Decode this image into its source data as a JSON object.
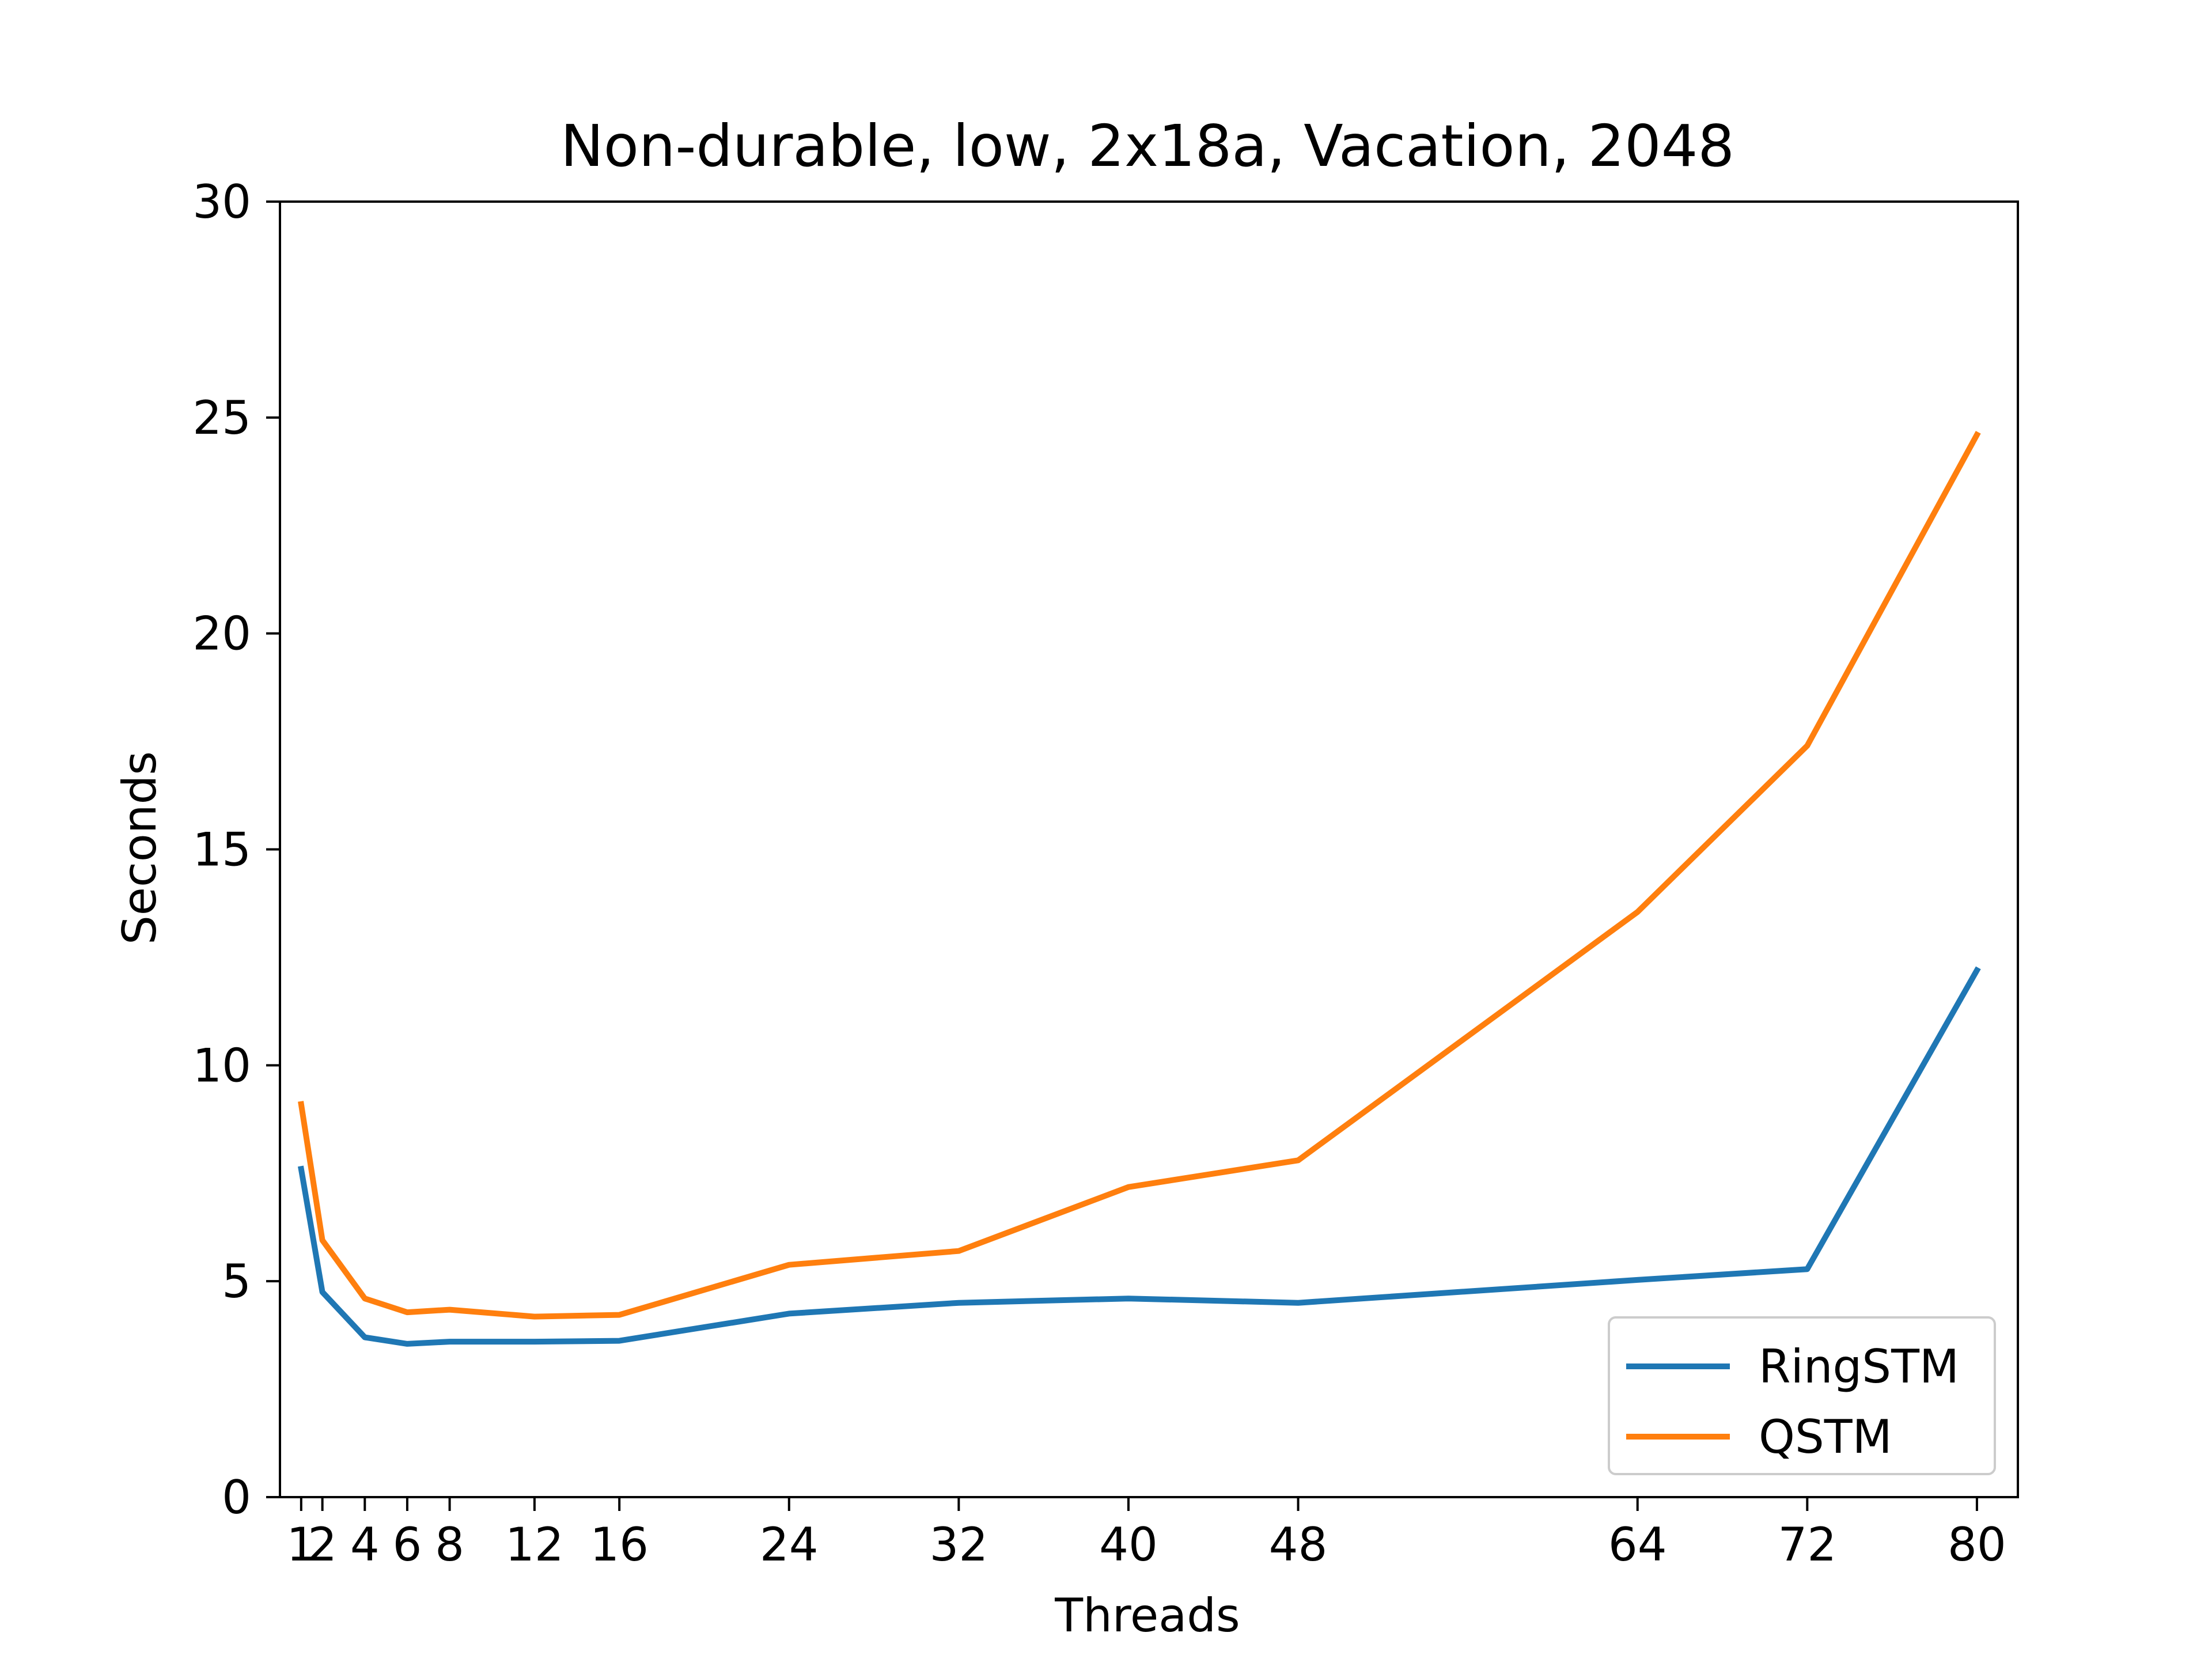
{
  "chart_data": {
    "type": "line",
    "title": "Non-durable, low, 2x18a, Vacation, 2048",
    "xlabel": "Threads",
    "ylabel": "Seconds",
    "xlim": [
      0,
      81.93
    ],
    "ylim": [
      0,
      30
    ],
    "xticks": [
      1,
      2,
      4,
      6,
      8,
      12,
      16,
      24,
      32,
      40,
      48,
      64,
      72,
      80
    ],
    "yticks": [
      0,
      5,
      10,
      15,
      20,
      25,
      30
    ],
    "x": [
      1,
      2,
      4,
      6,
      8,
      12,
      16,
      24,
      32,
      40,
      48,
      64,
      72,
      80
    ],
    "series": [
      {
        "name": "RingSTM",
        "color": "#1f77b4",
        "values": [
          7.6,
          4.75,
          3.7,
          3.55,
          3.6,
          3.6,
          3.62,
          4.25,
          4.5,
          4.6,
          4.5,
          5.03,
          5.28,
          12.2
        ]
      },
      {
        "name": "QSTM",
        "color": "#ff7f0e",
        "values": [
          9.1,
          5.95,
          4.6,
          4.28,
          4.34,
          4.18,
          4.22,
          5.38,
          5.7,
          7.18,
          7.8,
          13.55,
          17.4,
          24.6
        ]
      }
    ],
    "legend_position": "lower right",
    "grid": false
  }
}
